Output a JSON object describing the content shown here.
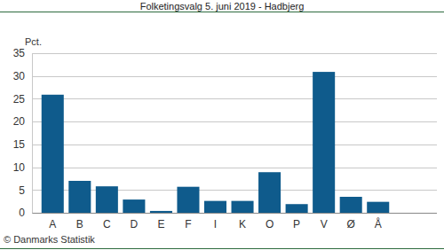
{
  "chart_data": {
    "type": "bar",
    "title": "Folketingsvalg 5. juni 2019 - Hadbjerg",
    "ylabel": "Pct.",
    "annotations": [
      "© Danmarks Statistik"
    ],
    "categories": [
      "A",
      "B",
      "C",
      "D",
      "E",
      "F",
      "I",
      "K",
      "O",
      "P",
      "V",
      "Ø",
      "Å"
    ],
    "values": [
      25.9,
      7.0,
      5.8,
      2.9,
      0.4,
      5.7,
      2.6,
      2.6,
      8.9,
      1.9,
      30.9,
      3.5,
      2.4
    ],
    "color": "#0f5b8c",
    "ylim": [
      0,
      35
    ],
    "yticks": [
      0,
      5,
      10,
      15,
      20,
      25,
      30,
      35
    ],
    "grid": true
  }
}
